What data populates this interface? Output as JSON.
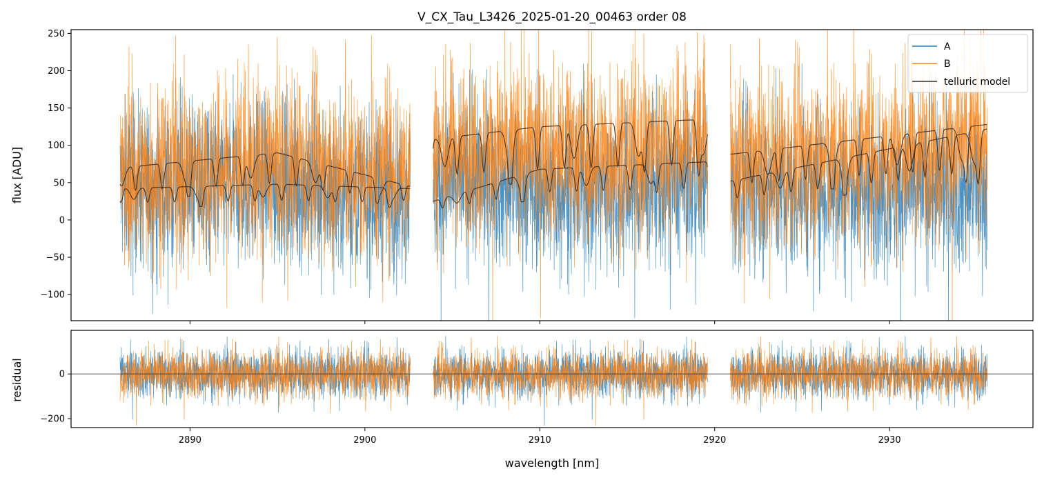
{
  "chart_data": [
    {
      "panel": "spectrum",
      "type": "line",
      "title": "V_CX_Tau_L3426_2025-01-20_00463  order 08",
      "xlabel": "",
      "ylabel": "flux [ADU]",
      "xlim": [
        2883.2,
        2938.2
      ],
      "ylim": [
        -135,
        255
      ],
      "yticks": [
        -100,
        -50,
        0,
        50,
        100,
        150,
        200,
        250
      ],
      "ytick_labels": [
        "−100",
        "−50",
        "0",
        "50",
        "100",
        "150",
        "200",
        "250"
      ],
      "xticks": [
        2890,
        2900,
        2910,
        2920,
        2930
      ],
      "segments": [
        [
          2886.0,
          2902.6
        ],
        [
          2903.9,
          2919.6
        ],
        [
          2920.9,
          2935.6
        ]
      ],
      "legend": {
        "placement": "top-right",
        "entries": [
          {
            "label": "A",
            "color": "#1f77b4"
          },
          {
            "label": "B",
            "color": "#ff7f0e"
          },
          {
            "label": "telluric model",
            "color": "#3b2a20"
          }
        ]
      },
      "series": [
        {
          "name": "A",
          "color": "#1f77b4",
          "baseline": [
            [
              2886.0,
              45
            ],
            [
              2895,
              50
            ],
            [
              2900,
              35
            ],
            [
              2905,
              50
            ],
            [
              2915,
              40
            ],
            [
              2919.6,
              55
            ],
            [
              2921,
              40
            ],
            [
              2935.6,
              40
            ]
          ],
          "noise": 55
        },
        {
          "name": "B",
          "color": "#ff7f0e",
          "baseline": [
            [
              2886.0,
              60
            ],
            [
              2895,
              75
            ],
            [
              2900,
              60
            ],
            [
              2905,
              95
            ],
            [
              2915,
              90
            ],
            [
              2919.6,
              110
            ],
            [
              2921,
              70
            ],
            [
              2935.6,
              105
            ]
          ],
          "noise": 60
        },
        {
          "name": "telluric model (A)",
          "color": "#3b2a20",
          "continuum": [
            [
              2886.0,
              42
            ],
            [
              2895,
              48
            ],
            [
              2902.6,
              42
            ],
            [
              2903.9,
              25
            ],
            [
              2910,
              68
            ],
            [
              2919.6,
              78
            ],
            [
              2920.9,
              52
            ],
            [
              2935.6,
              122
            ]
          ]
        },
        {
          "name": "telluric model (B)",
          "color": "#3b2a20",
          "continuum": [
            [
              2886.0,
              70
            ],
            [
              2895,
              90
            ],
            [
              2902.6,
              45
            ],
            [
              2903.9,
              108
            ],
            [
              2910,
              125
            ],
            [
              2919.6,
              135
            ],
            [
              2920.9,
              88
            ],
            [
              2935.6,
              128
            ]
          ]
        }
      ]
    },
    {
      "panel": "residual",
      "type": "line",
      "xlabel": "wavelength [nm]",
      "ylabel": "residual",
      "xlim": [
        2883.2,
        2938.2
      ],
      "ylim": [
        -240,
        195
      ],
      "yticks": [
        -200,
        0
      ],
      "ytick_labels": [
        "−200",
        "0"
      ],
      "xticks": [
        2890,
        2900,
        2910,
        2920,
        2930
      ],
      "xtick_labels": [
        "2890",
        "2900",
        "2910",
        "2920",
        "2930"
      ],
      "zero_line": 0,
      "series": [
        {
          "name": "A",
          "color": "#1f77b4",
          "noise": 55
        },
        {
          "name": "B",
          "color": "#ff7f0e",
          "noise": 55
        }
      ]
    }
  ]
}
